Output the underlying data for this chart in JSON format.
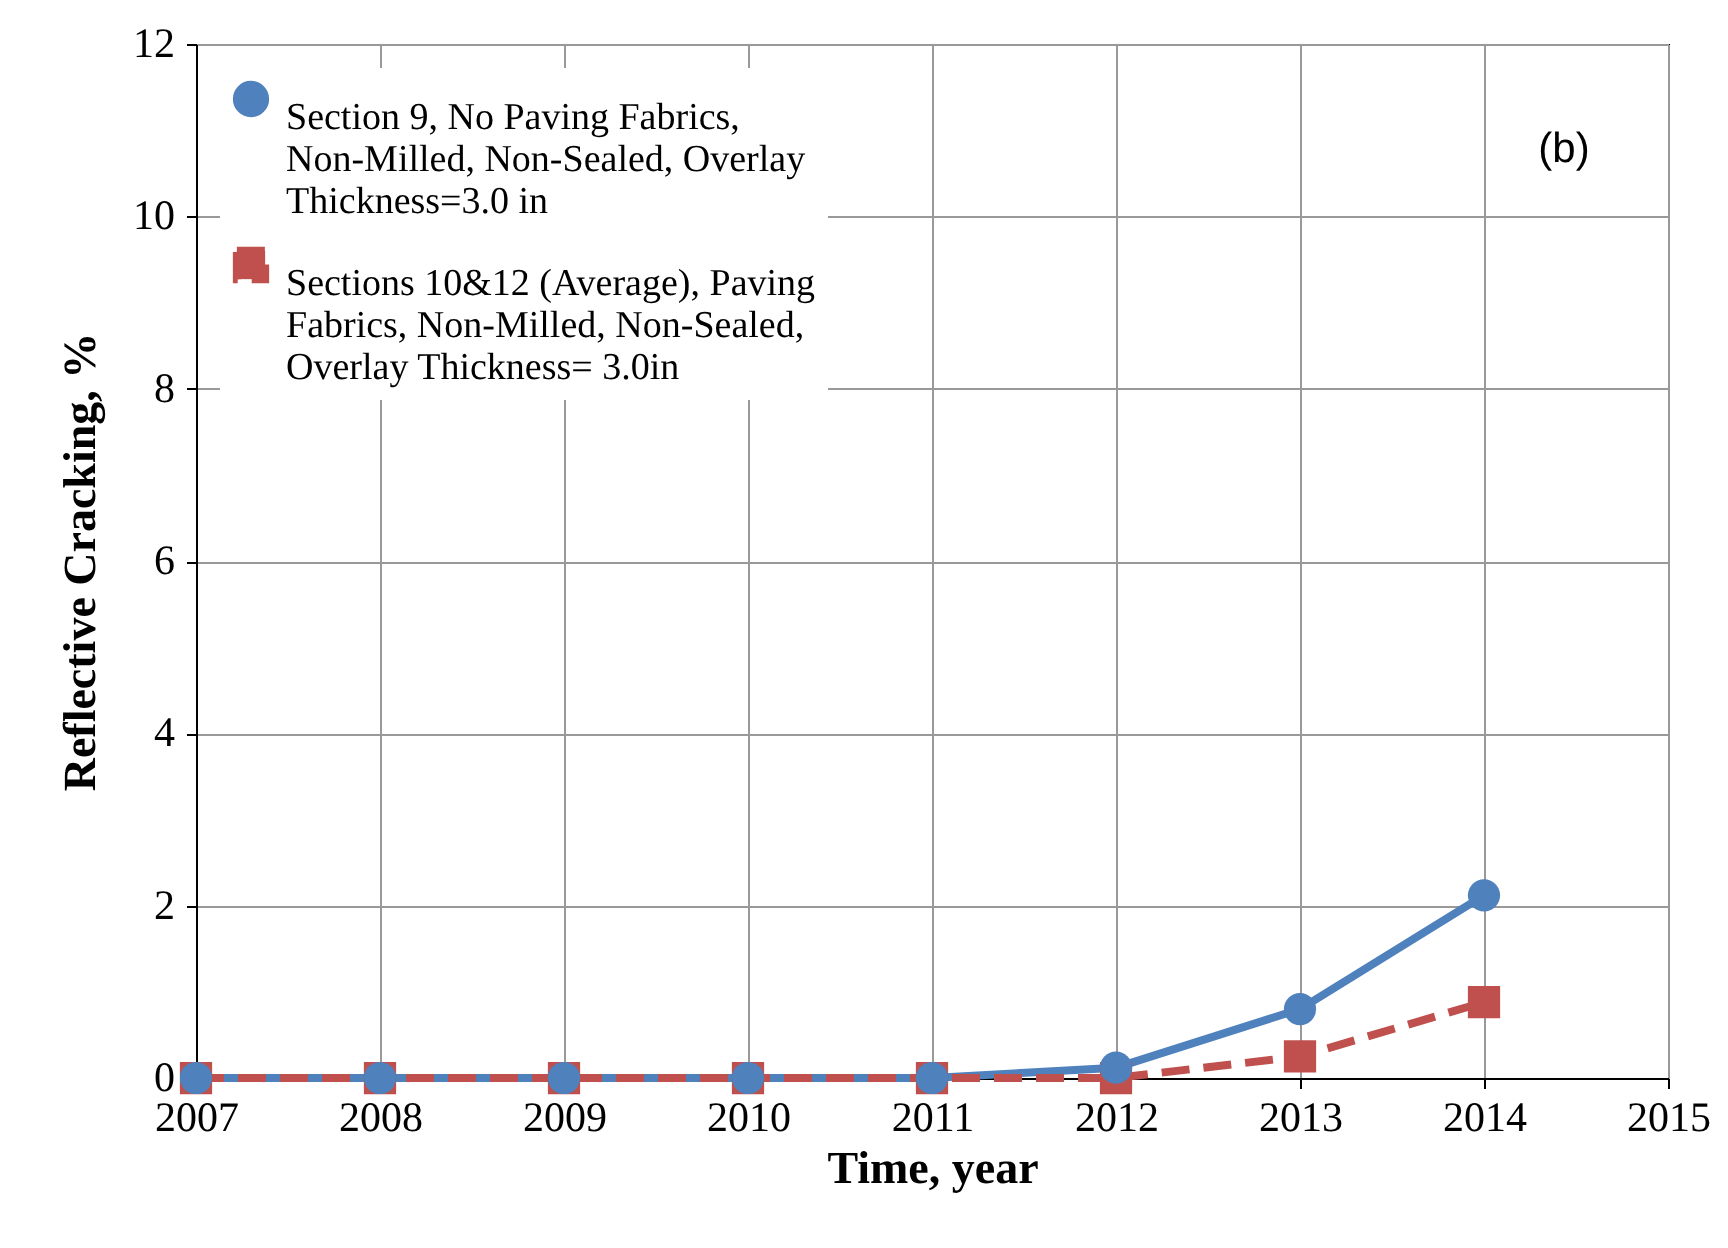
{
  "chart_data": {
    "type": "line",
    "xlabel": "Time, year",
    "ylabel": "Reflective Cracking, %",
    "x": [
      2007,
      2008,
      2009,
      2010,
      2011,
      2012,
      2013,
      2014
    ],
    "series": [
      {
        "name": "Section 9, No Paving Fabrics, Non-Milled, Non-Sealed, Overlay Thickness=3.0 in",
        "color": "#4f81bd",
        "marker": "circle",
        "line_style": "solid",
        "values": [
          0,
          0,
          0,
          0,
          0,
          0.12,
          0.8,
          2.12
        ]
      },
      {
        "name": "Sections 10&12 (Average), Paving Fabrics, Non-Milled,  Non-Sealed, Overlay Thickness= 3.0in",
        "color": "#c0504d",
        "marker": "square",
        "line_style": "dashed",
        "values": [
          0,
          0,
          0,
          0,
          0,
          0,
          0.25,
          0.88
        ]
      }
    ],
    "xlim": [
      2007,
      2015
    ],
    "xticks": [
      2007,
      2008,
      2009,
      2010,
      2011,
      2012,
      2013,
      2014,
      2015
    ],
    "ylim": [
      0,
      12
    ],
    "yticks": [
      0,
      2,
      4,
      6,
      8,
      10,
      12
    ],
    "grid": true,
    "legend": "top left",
    "annotations": [
      "(b)"
    ]
  }
}
